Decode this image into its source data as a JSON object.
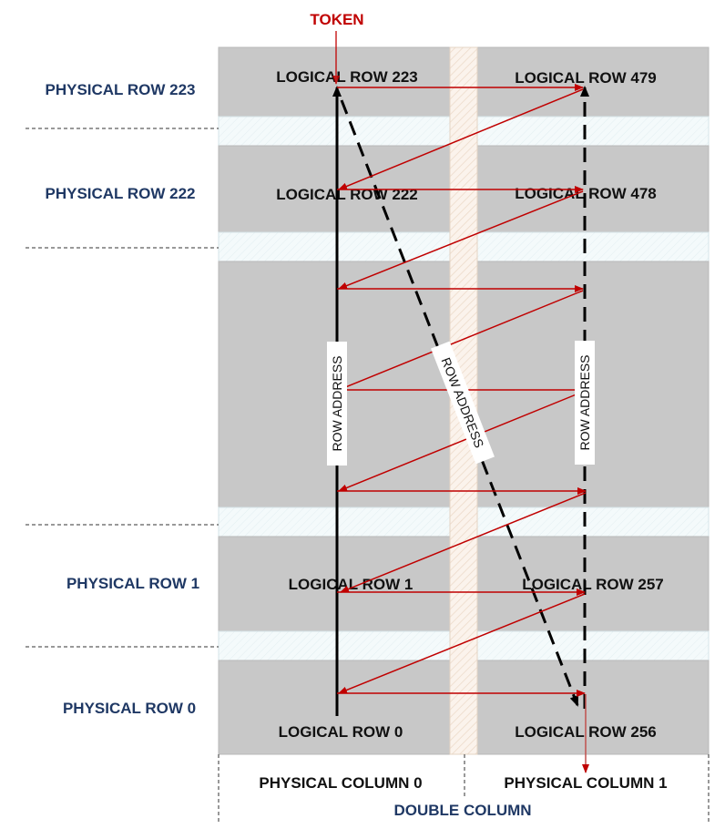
{
  "token_label": "TOKEN",
  "physical_rows": {
    "row_223": "PHYSICAL ROW 223",
    "row_222": "PHYSICAL ROW 222",
    "row_1": "PHYSICAL ROW 1",
    "row_0": "PHYSICAL ROW 0"
  },
  "logical_rows": {
    "c0_223": "LOGICAL ROW 223",
    "c1_479": "LOGICAL ROW 479",
    "c0_222": "LOGICAL ROW 222",
    "c1_478": "LOGICAL ROW 478",
    "c0_1": "LOGICAL ROW 1",
    "c1_257": "LOGICAL ROW 257",
    "c0_0": "LOGICAL ROW 0",
    "c1_256": "LOGICAL ROW 256"
  },
  "columns": {
    "col0": "PHYSICAL COLUMN 0",
    "col1": "PHYSICAL COLUMN 1",
    "double": "DOUBLE COLUMN"
  },
  "row_address_labels": {
    "left": "ROW ADDRESS",
    "diagonal": "ROW ADDRESS",
    "right": "ROW ADDRESS"
  },
  "colors": {
    "cell_fill": "#c8c8c8",
    "separator_fill": "#eef6f8",
    "divider_fill": "#f7ece2",
    "arrow_red": "#c00000",
    "physical_text": "#1f3864"
  }
}
